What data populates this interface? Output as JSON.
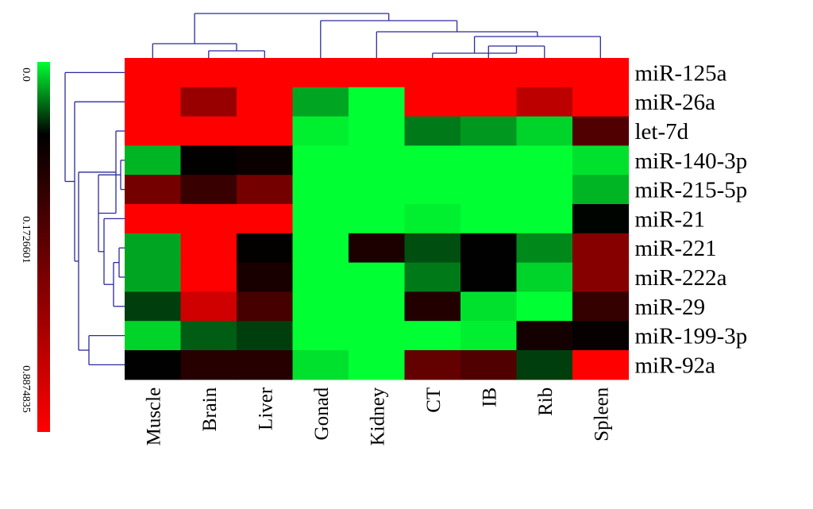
{
  "chart_data": {
    "type": "heatmap",
    "title": "",
    "xlabel": "",
    "ylabel": "",
    "columns": [
      "Muscle",
      "Brain",
      "Liver",
      "Gonad",
      "Kidney",
      "CT",
      "IB",
      "Rib",
      "Spleen"
    ],
    "rows": [
      "miR-125a",
      "miR-26a",
      "let-7d",
      "miR-140-3p",
      "miR-215-5p",
      "miR-21",
      "miR-221",
      "miR-222a",
      "miR-29",
      "miR-199-3p",
      "miR-92a"
    ],
    "values": [
      [
        0.8875,
        0.8875,
        0.8875,
        0.8875,
        0.8875,
        0.8875,
        0.8875,
        0.8875,
        0.8875
      ],
      [
        0.8875,
        0.6,
        0.8875,
        0.06,
        0.0,
        0.8875,
        0.8875,
        0.7,
        0.8875
      ],
      [
        0.8875,
        0.8875,
        0.8875,
        0.01,
        0.0,
        0.09,
        0.07,
        0.03,
        0.4
      ],
      [
        0.05,
        0.18,
        0.2,
        0.0,
        0.0,
        0.0,
        0.0,
        0.0,
        0.02
      ],
      [
        0.5,
        0.33,
        0.5,
        0.0,
        0.0,
        0.0,
        0.0,
        0.0,
        0.05
      ],
      [
        0.8875,
        0.8875,
        0.8875,
        0.0,
        0.0,
        0.01,
        0.0,
        0.0,
        0.17
      ],
      [
        0.06,
        0.8875,
        0.18,
        0.0,
        0.25,
        0.12,
        0.172,
        0.08,
        0.55
      ],
      [
        0.06,
        0.8875,
        0.24,
        0.0,
        0.0,
        0.09,
        0.172,
        0.03,
        0.55
      ],
      [
        0.13,
        0.75,
        0.37,
        0.0,
        0.0,
        0.27,
        0.02,
        0.0,
        0.32
      ],
      [
        0.03,
        0.11,
        0.13,
        0.0,
        0.0,
        0.0,
        0.01,
        0.23,
        0.19
      ],
      [
        0.172,
        0.28,
        0.28,
        0.02,
        0.0,
        0.45,
        0.4,
        0.13,
        0.8875
      ]
    ],
    "colorbar": {
      "ticks": [
        0.0,
        0.1726601,
        0.8874835
      ],
      "tick_labels": [
        "0.0",
        "0.1726601",
        "0.8874835"
      ],
      "low_color": "#00ff33",
      "mid_color": "#000000",
      "high_color": "#ff0000"
    },
    "dendrogram_color": "#2b2b9a",
    "grid": false
  }
}
